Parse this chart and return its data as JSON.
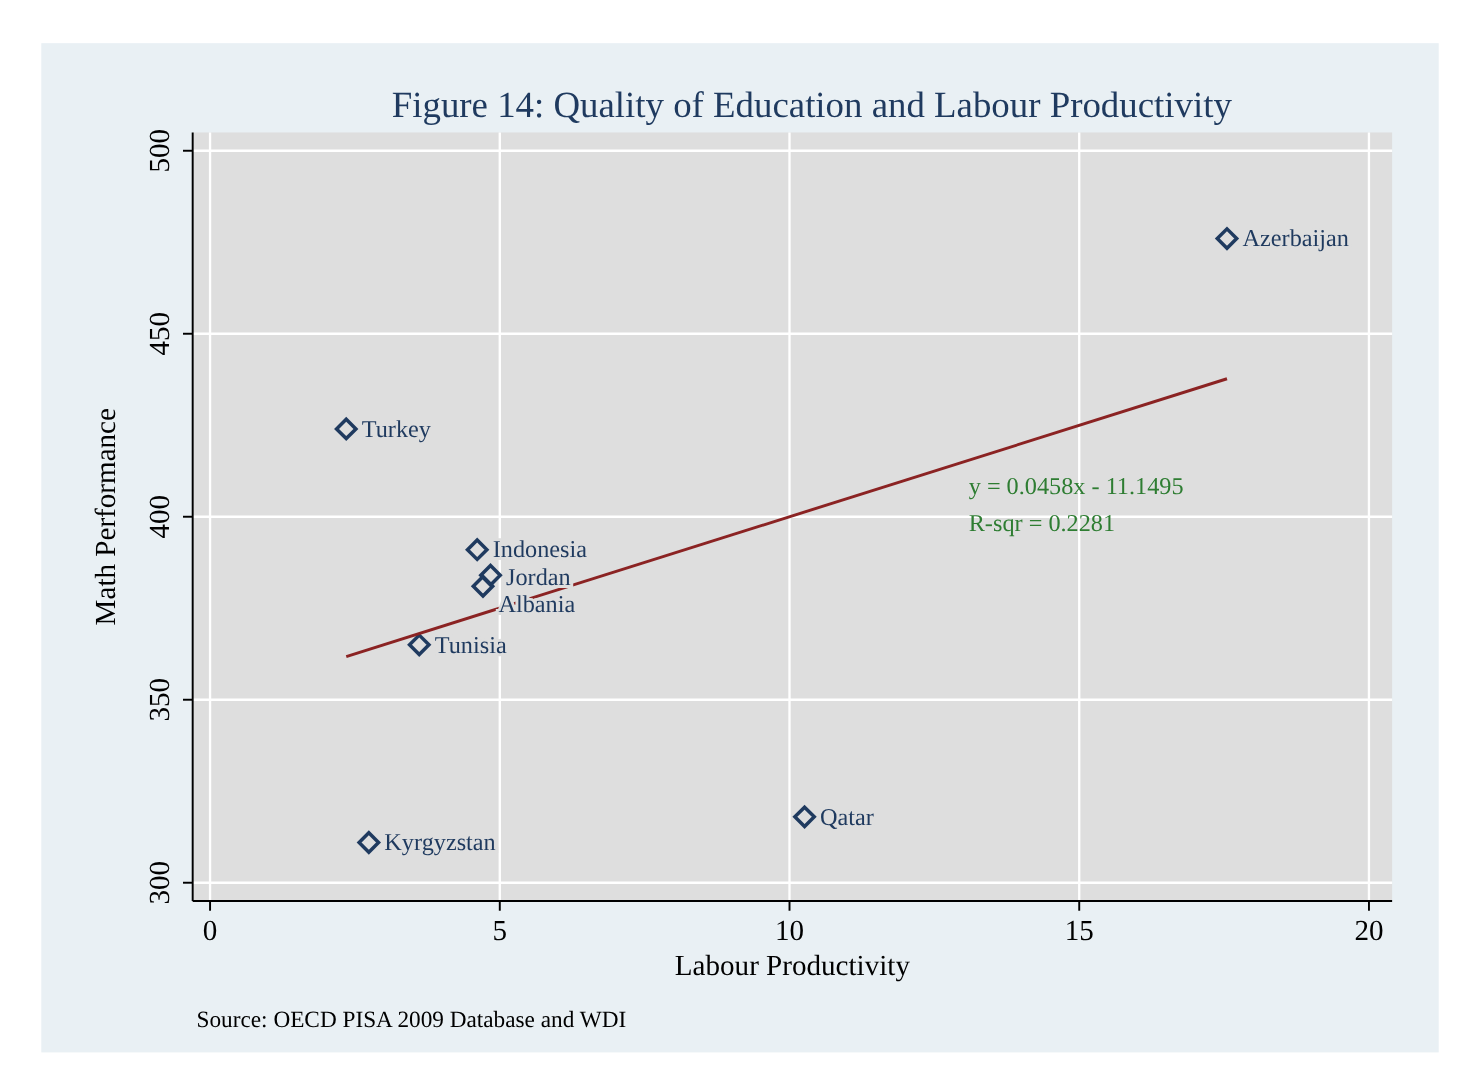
{
  "chart_data": {
    "type": "scatter",
    "title": "Figure 14: Quality of Education and Labour Productivity",
    "xlabel": "Labour Productivity",
    "ylabel": "Math Performance",
    "xlim": [
      -0.3,
      20.4
    ],
    "ylim": [
      295,
      505
    ],
    "xticks": [
      0,
      5,
      10,
      15,
      20
    ],
    "yticks": [
      300,
      350,
      400,
      450,
      500
    ],
    "grid": true,
    "series": [
      {
        "marker": "diamond",
        "color": "#1f3a5f",
        "x": [
          17.55,
          2.35,
          4.61,
          4.84,
          4.71,
          3.61,
          2.74,
          10.26
        ],
        "values": [
          476,
          424,
          391,
          384,
          381,
          365,
          311,
          318
        ]
      },
      {
        "type": "line",
        "marker": "none",
        "color": "#8b2323",
        "x": [
          2.35,
          17.55
        ],
        "values": [
          361.8,
          437.7
        ]
      }
    ],
    "annotations": [
      {
        "text": "Azerbaijan",
        "x": 17.55,
        "y": 476
      },
      {
        "text": "Turkey",
        "x": 2.35,
        "y": 424
      },
      {
        "text": "Indonesia",
        "x": 4.61,
        "y": 391
      },
      {
        "text": "Jordan",
        "x": 4.84,
        "y": 384
      },
      {
        "text": "Albania",
        "x": 4.71,
        "y": 381
      },
      {
        "text": "Tunisia",
        "x": 3.61,
        "y": 365
      },
      {
        "text": "Kyrgyzstan",
        "x": 2.74,
        "y": 311
      },
      {
        "text": "Qatar",
        "x": 10.26,
        "y": 318
      },
      "y = 0.0458x - 11.1495",
      "R-sqr = 0.2281",
      "Source: OECD PISA 2009 Database and WDI"
    ]
  }
}
